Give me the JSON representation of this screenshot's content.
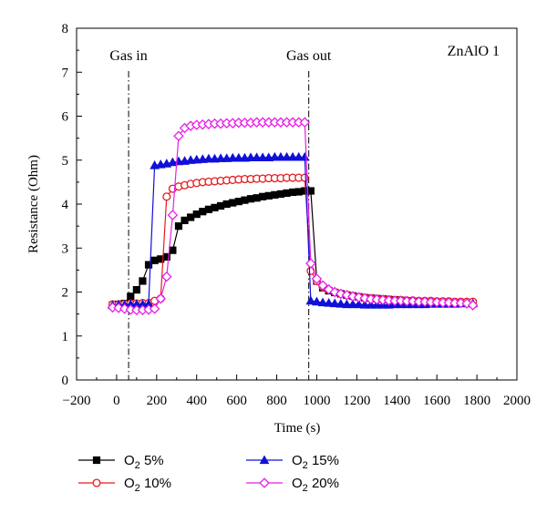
{
  "chart_data": {
    "type": "line",
    "title": "",
    "panel_label": "ZnAlO 1",
    "xlabel": "Time (s)",
    "ylabel": "Resistance (Ohm)",
    "xlim": [
      -200,
      2000
    ],
    "ylim": [
      0,
      8
    ],
    "xticks": [
      "−200",
      "0",
      "200",
      "400",
      "600",
      "800",
      "1000",
      "1200",
      "1400",
      "1600",
      "1800",
      "2000"
    ],
    "yticks": [
      "0",
      "1",
      "2",
      "3",
      "4",
      "5",
      "6",
      "7",
      "8"
    ],
    "grid": false,
    "legend_position": "bottom",
    "annotations": [
      {
        "label": "Gas in",
        "x": 60
      },
      {
        "label": "Gas out",
        "x": 960
      }
    ],
    "series": [
      {
        "name_prefix": "O",
        "name_sub": "2",
        "name_suffix": "5%",
        "color": "#000000",
        "marker": "square",
        "x": [
          -20,
          10,
          40,
          70,
          100,
          130,
          160,
          190,
          220,
          250,
          280,
          310,
          340,
          370,
          400,
          430,
          460,
          490,
          520,
          550,
          580,
          610,
          640,
          670,
          700,
          730,
          760,
          790,
          820,
          850,
          880,
          910,
          940,
          970,
          1000,
          1030,
          1060,
          1090,
          1120,
          1150,
          1180,
          1210,
          1240,
          1270,
          1300,
          1330,
          1360,
          1390,
          1420,
          1450,
          1480,
          1510,
          1540,
          1570,
          1600,
          1630,
          1660,
          1690,
          1720,
          1750,
          1780
        ],
        "y": [
          1.7,
          1.72,
          1.74,
          1.9,
          2.05,
          2.25,
          2.62,
          2.72,
          2.75,
          2.8,
          2.95,
          3.5,
          3.63,
          3.7,
          3.77,
          3.83,
          3.88,
          3.92,
          3.96,
          4.0,
          4.03,
          4.06,
          4.09,
          4.12,
          4.14,
          4.17,
          4.19,
          4.21,
          4.23,
          4.25,
          4.27,
          4.28,
          4.3,
          4.3,
          2.25,
          2.1,
          2.03,
          1.99,
          1.96,
          1.93,
          1.91,
          1.89,
          1.87,
          1.86,
          1.85,
          1.84,
          1.83,
          1.82,
          1.81,
          1.8,
          1.79,
          1.78,
          1.78,
          1.77,
          1.77,
          1.76,
          1.76,
          1.75,
          1.75,
          1.75,
          1.74
        ]
      },
      {
        "name_prefix": "O",
        "name_sub": "2",
        "name_suffix": "10%",
        "color": "#e8191d",
        "marker": "circle",
        "x": [
          -20,
          10,
          40,
          70,
          100,
          130,
          160,
          190,
          220,
          250,
          280,
          310,
          340,
          370,
          400,
          430,
          460,
          490,
          520,
          550,
          580,
          610,
          640,
          670,
          700,
          730,
          760,
          790,
          820,
          850,
          880,
          910,
          940,
          970,
          1000,
          1030,
          1060,
          1090,
          1120,
          1150,
          1180,
          1210,
          1240,
          1270,
          1300,
          1330,
          1360,
          1390,
          1420,
          1450,
          1480,
          1510,
          1540,
          1570,
          1600,
          1630,
          1660,
          1690,
          1720,
          1750,
          1780
        ],
        "y": [
          1.72,
          1.72,
          1.73,
          1.74,
          1.74,
          1.75,
          1.75,
          1.8,
          1.85,
          4.17,
          4.35,
          4.4,
          4.43,
          4.46,
          4.48,
          4.5,
          4.51,
          4.52,
          4.53,
          4.54,
          4.55,
          4.56,
          4.57,
          4.57,
          4.58,
          4.58,
          4.59,
          4.59,
          4.59,
          4.6,
          4.6,
          4.6,
          4.6,
          2.48,
          2.25,
          2.12,
          2.05,
          2.0,
          1.96,
          1.93,
          1.91,
          1.89,
          1.87,
          1.86,
          1.85,
          1.84,
          1.83,
          1.82,
          1.82,
          1.81,
          1.81,
          1.8,
          1.8,
          1.8,
          1.79,
          1.79,
          1.79,
          1.78,
          1.78,
          1.78,
          1.78
        ]
      },
      {
        "name_prefix": "O",
        "name_sub": "2",
        "name_suffix": "15%",
        "color": "#1010d8",
        "marker": "triangle",
        "x": [
          -20,
          10,
          40,
          70,
          100,
          130,
          160,
          190,
          220,
          250,
          280,
          310,
          340,
          370,
          400,
          430,
          460,
          490,
          520,
          550,
          580,
          610,
          640,
          670,
          700,
          730,
          760,
          790,
          820,
          850,
          880,
          910,
          940,
          970,
          1000,
          1030,
          1060,
          1090,
          1120,
          1150,
          1180,
          1210,
          1240,
          1270,
          1300,
          1330,
          1360,
          1390,
          1420,
          1450,
          1480,
          1510,
          1540,
          1570,
          1600,
          1630,
          1660,
          1690,
          1720,
          1750,
          1780
        ],
        "y": [
          1.7,
          1.71,
          1.71,
          1.72,
          1.72,
          1.72,
          1.73,
          4.88,
          4.9,
          4.92,
          4.95,
          4.97,
          4.98,
          5.0,
          5.01,
          5.02,
          5.03,
          5.03,
          5.04,
          5.04,
          5.05,
          5.05,
          5.05,
          5.06,
          5.06,
          5.06,
          5.06,
          5.07,
          5.07,
          5.07,
          5.07,
          5.07,
          5.07,
          1.8,
          1.78,
          1.76,
          1.75,
          1.74,
          1.73,
          1.72,
          1.72,
          1.72,
          1.71,
          1.71,
          1.71,
          1.71,
          1.71,
          1.72,
          1.72,
          1.72,
          1.72,
          1.72,
          1.72,
          1.73,
          1.73,
          1.73,
          1.73,
          1.73,
          1.74,
          1.74,
          1.74
        ]
      },
      {
        "name_prefix": "O",
        "name_sub": "2",
        "name_suffix": "20%",
        "color": "#e81ee8",
        "marker": "diamond",
        "x": [
          -20,
          10,
          40,
          70,
          100,
          130,
          160,
          190,
          220,
          250,
          280,
          310,
          340,
          370,
          400,
          430,
          460,
          490,
          520,
          550,
          580,
          610,
          640,
          670,
          700,
          730,
          760,
          790,
          820,
          850,
          880,
          910,
          940,
          970,
          1000,
          1030,
          1060,
          1090,
          1120,
          1150,
          1180,
          1210,
          1240,
          1270,
          1300,
          1330,
          1360,
          1390,
          1420,
          1450,
          1480,
          1510,
          1540,
          1570,
          1600,
          1630,
          1660,
          1690,
          1720,
          1750,
          1780
        ],
        "y": [
          1.65,
          1.64,
          1.62,
          1.6,
          1.59,
          1.59,
          1.6,
          1.62,
          1.85,
          2.35,
          3.75,
          5.55,
          5.73,
          5.78,
          5.8,
          5.81,
          5.82,
          5.83,
          5.83,
          5.84,
          5.84,
          5.85,
          5.85,
          5.85,
          5.86,
          5.86,
          5.86,
          5.86,
          5.86,
          5.86,
          5.86,
          5.86,
          5.86,
          2.65,
          2.3,
          2.15,
          2.06,
          2.0,
          1.96,
          1.93,
          1.9,
          1.88,
          1.86,
          1.84,
          1.83,
          1.82,
          1.81,
          1.8,
          1.8,
          1.79,
          1.79,
          1.78,
          1.78,
          1.77,
          1.77,
          1.76,
          1.76,
          1.75,
          1.75,
          1.74,
          1.7
        ]
      }
    ]
  }
}
